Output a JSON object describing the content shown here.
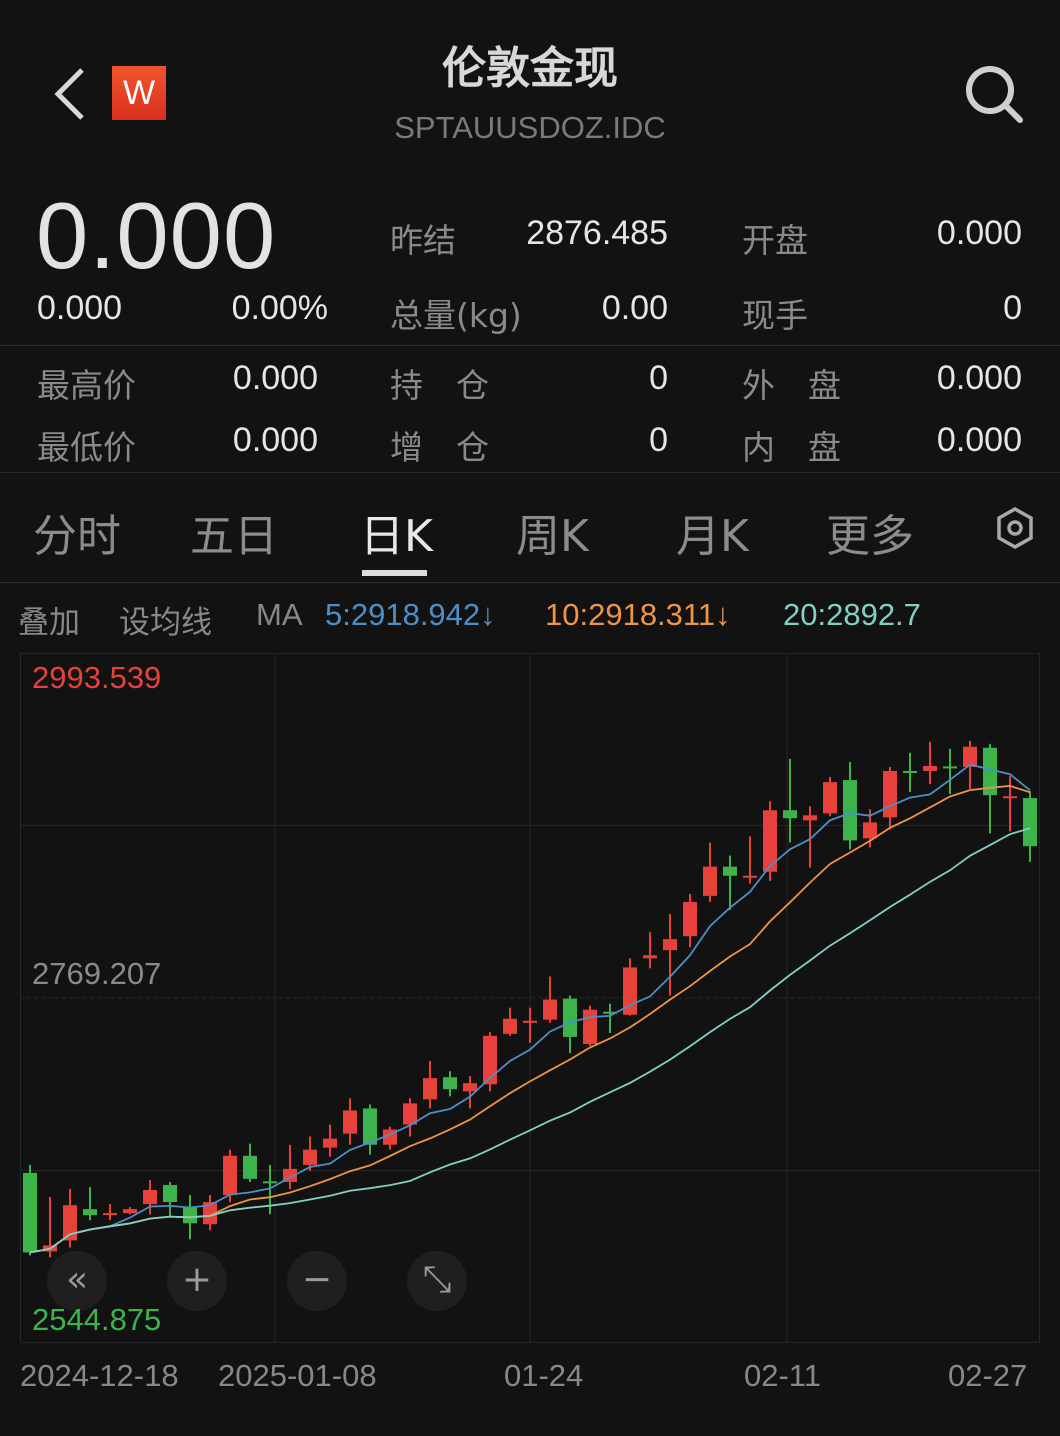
{
  "header": {
    "title": "伦敦金现",
    "code": "SPTAUUSDOZ.IDC",
    "logo_letter": "W",
    "back_icon": "chevron-left-icon",
    "search_icon": "search-icon"
  },
  "quote": {
    "price": "0.000",
    "change": "0.000",
    "change_pct": "0.00%",
    "fields": [
      {
        "label": "昨结",
        "value": "2876.485"
      },
      {
        "label": "开盘",
        "value": "0.000"
      },
      {
        "label": "总量(kg)",
        "value": "0.00"
      },
      {
        "label": "现手",
        "value": "0"
      },
      {
        "label": "最高价",
        "value": "0.000"
      },
      {
        "label": "持　仓",
        "value": "0"
      },
      {
        "label": "外　盘",
        "value": "0.000"
      },
      {
        "label": "最低价",
        "value": "0.000"
      },
      {
        "label": "增　仓",
        "value": "0"
      },
      {
        "label": "内　盘",
        "value": "0.000"
      }
    ]
  },
  "tabs": [
    {
      "label": "分时"
    },
    {
      "label": "五日"
    },
    {
      "label": "日K",
      "active": true
    },
    {
      "label": "周K"
    },
    {
      "label": "月K"
    },
    {
      "label": "更多"
    }
  ],
  "settings_icon": "hexagon-settings-icon",
  "indicator_bar": {
    "overlay": "叠加",
    "set_ma": "设均线",
    "ma_label": "MA",
    "ma5": "5:2918.942↓",
    "ma10": "10:2918.311↓",
    "ma20": "20:2892.7"
  },
  "colors": {
    "up": "#e8403a",
    "down": "#3cb44b",
    "ma5": "#4b8fc6",
    "ma10": "#ee9446",
    "ma20": "#80d0c6",
    "background": "#121212"
  },
  "controls": [
    {
      "name": "scroll-left",
      "glyph": "«"
    },
    {
      "name": "zoom-in",
      "glyph": "+"
    },
    {
      "name": "zoom-out",
      "glyph": "−"
    },
    {
      "name": "fullscreen",
      "glyph": "⤡"
    }
  ],
  "chart_data": {
    "type": "candlestick",
    "y_max_label": "2993.539",
    "y_mid_label": "2769.207",
    "y_min_label": "2544.875",
    "ylim": [
      2544.875,
      2993.539
    ],
    "x_ticks": [
      {
        "label": "2024-12-18",
        "index": 0
      },
      {
        "label": "2025-01-08",
        "index": 14
      },
      {
        "label": "01-24",
        "index": 26
      },
      {
        "label": "02-11",
        "index": 38
      },
      {
        "label": "02-27",
        "index": 50
      }
    ],
    "ma_periods": [
      5,
      10,
      20
    ],
    "candles": [
      [
        2655.5,
        2603.8,
        2660.7,
        2601.8
      ],
      [
        2604.4,
        2608.3,
        2639.8,
        2600.5
      ],
      [
        2611.6,
        2634.5,
        2645.0,
        2607.0
      ],
      [
        2631.9,
        2628.0,
        2646.3,
        2624.7
      ],
      [
        2628.9,
        2629.3,
        2635.2,
        2624.7
      ],
      [
        2629.3,
        2631.9,
        2633.2,
        2628.6
      ],
      [
        2635.2,
        2644.4,
        2650.9,
        2628.6
      ],
      [
        2647.6,
        2636.5,
        2649.6,
        2626.7
      ],
      [
        2633.2,
        2622.7,
        2641.1,
        2612.3
      ],
      [
        2622.1,
        2636.5,
        2641.1,
        2618.2
      ],
      [
        2641.1,
        2666.6,
        2670.6,
        2636.5
      ],
      [
        2666.6,
        2651.6,
        2674.5,
        2649.6
      ],
      [
        2650.0,
        2649.6,
        2660.7,
        2628.6
      ],
      [
        2649.6,
        2658.1,
        2673.8,
        2645.0
      ],
      [
        2660.7,
        2670.6,
        2679.1,
        2656.8
      ],
      [
        2671.9,
        2677.8,
        2686.9,
        2666.0
      ],
      [
        2681.0,
        2696.1,
        2704.0,
        2673.8
      ],
      [
        2697.4,
        2673.8,
        2700.0,
        2667.3
      ],
      [
        2673.8,
        2683.7,
        2685.6,
        2670.6
      ],
      [
        2686.9,
        2700.7,
        2704.0,
        2679.1
      ],
      [
        2703.3,
        2717.1,
        2728.2,
        2697.4
      ],
      [
        2717.7,
        2709.9,
        2721.6,
        2705.3
      ],
      [
        2708.5,
        2713.8,
        2718.4,
        2697.4
      ],
      [
        2713.1,
        2744.6,
        2747.2,
        2708.5
      ],
      [
        2745.9,
        2755.7,
        2762.9,
        2744.6
      ],
      [
        2753.8,
        2754.4,
        2762.9,
        2740.0
      ],
      [
        2755.1,
        2768.2,
        2783.2,
        2753.1
      ],
      [
        2768.8,
        2743.9,
        2770.8,
        2733.4
      ],
      [
        2739.3,
        2761.6,
        2764.2,
        2738.0
      ],
      [
        2760.3,
        2759.7,
        2765.5,
        2746.5
      ],
      [
        2758.3,
        2789.1,
        2795.0,
        2757.7
      ],
      [
        2795.0,
        2797.0,
        2812.0,
        2788.5
      ],
      [
        2800.3,
        2807.5,
        2823.8,
        2770.8
      ],
      [
        2809.4,
        2831.7,
        2836.9,
        2802.2
      ],
      [
        2835.6,
        2854.6,
        2870.3,
        2831.7
      ],
      [
        2854.6,
        2848.7,
        2861.8,
        2826.5
      ],
      [
        2848.2,
        2848.7,
        2874.3,
        2843.5
      ],
      [
        2851.3,
        2891.3,
        2897.2,
        2845.4
      ],
      [
        2891.3,
        2886.1,
        2924.7,
        2870.3
      ],
      [
        2884.7,
        2888.0,
        2893.9,
        2854.0
      ],
      [
        2889.3,
        2909.6,
        2912.9,
        2887.4
      ],
      [
        2910.9,
        2871.7,
        2922.7,
        2865.8
      ],
      [
        2873.0,
        2883.4,
        2891.9,
        2867.1
      ],
      [
        2886.7,
        2916.8,
        2919.5,
        2878.9
      ],
      [
        2916.8,
        2916.0,
        2928.6,
        2903.1
      ],
      [
        2916.8,
        2920.1,
        2935.8,
        2908.3
      ],
      [
        2919.8,
        2919.3,
        2931.3,
        2901.8
      ],
      [
        2919.5,
        2932.6,
        2936.5,
        2905.1
      ],
      [
        2931.9,
        2901.1,
        2934.5,
        2876.2
      ],
      [
        2900.0,
        2900.4,
        2913.6,
        2877.5
      ],
      [
        2899.2,
        2867.9,
        2903.7,
        2857.7
      ]
    ],
    "candle_fields": [
      "open",
      "close",
      "high",
      "low"
    ]
  }
}
